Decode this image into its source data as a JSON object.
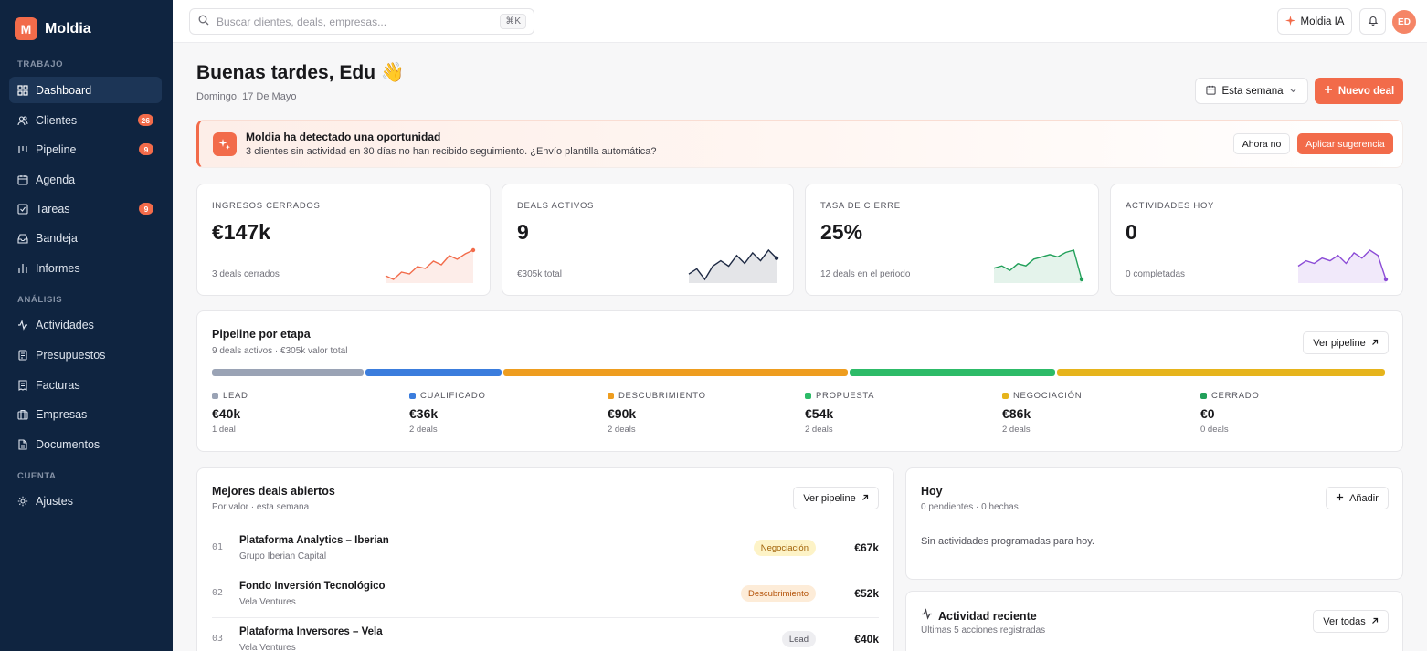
{
  "app": {
    "name": "Moldia",
    "logo_letter": "M"
  },
  "sidebar": {
    "sections": [
      {
        "label": "TRABAJO"
      },
      {
        "label": "ANÁLISIS"
      },
      {
        "label": "CUENTA"
      }
    ],
    "items": [
      {
        "label": "Dashboard",
        "icon": "grid-icon"
      },
      {
        "label": "Clientes",
        "icon": "users-icon",
        "badge": "26"
      },
      {
        "label": "Pipeline",
        "icon": "pipeline-icon",
        "badge": "9"
      },
      {
        "label": "Agenda",
        "icon": "calendar-icon"
      },
      {
        "label": "Tareas",
        "icon": "checkbox-icon",
        "badge": "9"
      },
      {
        "label": "Bandeja",
        "icon": "inbox-icon"
      },
      {
        "label": "Informes",
        "icon": "bar-chart-icon"
      },
      {
        "label": "Actividades",
        "icon": "activity-icon"
      },
      {
        "label": "Presupuestos",
        "icon": "document-icon"
      },
      {
        "label": "Facturas",
        "icon": "invoice-icon"
      },
      {
        "label": "Empresas",
        "icon": "briefcase-icon"
      },
      {
        "label": "Documentos",
        "icon": "file-icon"
      },
      {
        "label": "Ajustes",
        "icon": "gear-icon"
      }
    ]
  },
  "topbar": {
    "search_placeholder": "Buscar clientes, deals, empresas...",
    "shortcut": "⌘K",
    "ai_label": "Moldia IA",
    "avatar_initials": "ED"
  },
  "header": {
    "greeting": "Buenas tardes, Edu 👋",
    "date": "Domingo, 17 De Mayo",
    "period_label": "Esta semana",
    "new_deal_label": "Nuevo deal"
  },
  "banner": {
    "title": "Moldia ha detectado una oportunidad",
    "text": "3 clientes sin actividad en 30 días no han recibido seguimiento. ¿Envío plantilla automática?",
    "dismiss_label": "Ahora no",
    "apply_label": "Aplicar sugerencia"
  },
  "kpis": [
    {
      "label": "INGRESOS CERRADOS",
      "value": "€147k",
      "sub": "3 deals cerrados",
      "color": "#f26b4a",
      "trend": [
        3,
        1,
        5,
        4,
        8,
        7,
        11,
        9,
        14,
        12,
        15,
        17
      ]
    },
    {
      "label": "DEALS ACTIVOS",
      "value": "9",
      "sub": "€305k total",
      "color": "#1e2a44",
      "trend": [
        5,
        7,
        3,
        8,
        10,
        8,
        12,
        9,
        13,
        10,
        14,
        11
      ]
    },
    {
      "label": "TASA DE CIERRE",
      "value": "25%",
      "sub": "12 deals en el periodo",
      "color": "#22a05a",
      "trend": [
        6,
        7,
        5,
        8,
        7,
        10,
        11,
        12,
        11,
        13,
        14,
        1
      ]
    },
    {
      "label": "ACTIVIDADES HOY",
      "value": "0",
      "sub": "0 completadas",
      "color": "#8b4bd6",
      "trend": [
        7,
        9,
        8,
        10,
        9,
        11,
        8,
        12,
        10,
        13,
        11,
        2
      ]
    }
  ],
  "pipeline": {
    "title": "Pipeline por etapa",
    "subtitle": "9 deals activos · €305k valor total",
    "button_label": "Ver pipeline",
    "stages": [
      {
        "label": "LEAD",
        "value": "€40k",
        "count": "1 deal",
        "color": "#9aa3b5",
        "share": 40
      },
      {
        "label": "CUALIFICADO",
        "value": "€36k",
        "count": "2 deals",
        "color": "#3b7ddd",
        "share": 36
      },
      {
        "label": "DESCUBRIMIENTO",
        "value": "€90k",
        "count": "2 deals",
        "color": "#ee9d1f",
        "share": 90
      },
      {
        "label": "PROPUESTA",
        "value": "€54k",
        "count": "2 deals",
        "color": "#2dbb68",
        "share": 54
      },
      {
        "label": "NEGOCIACIÓN",
        "value": "€86k",
        "count": "2 deals",
        "color": "#e6b41c",
        "share": 86
      },
      {
        "label": "CERRADO",
        "value": "€0",
        "count": "0 deals",
        "color": "#22a05a",
        "share": 0
      }
    ]
  },
  "best_deals": {
    "title": "Mejores deals abiertos",
    "subtitle": "Por valor · esta semana",
    "button_label": "Ver pipeline",
    "rows": [
      {
        "num": "01",
        "name": "Plataforma Analytics – Iberian",
        "company": "Grupo Iberian Capital",
        "stage": "Negociación",
        "amount": "€67k"
      },
      {
        "num": "02",
        "name": "Fondo Inversión Tecnológico",
        "company": "Vela Ventures",
        "stage": "Descubrimiento",
        "amount": "€52k"
      },
      {
        "num": "03",
        "name": "Plataforma Inversores – Vela",
        "company": "Vela Ventures",
        "stage": "Lead",
        "amount": "€40k"
      }
    ]
  },
  "today": {
    "title": "Hoy",
    "subtitle": "0 pendientes · 0 hechas",
    "button_label": "Añadir",
    "empty": "Sin actividades programadas para hoy."
  },
  "recent": {
    "title": "Actividad reciente",
    "subtitle": "Últimas 5 acciones registradas",
    "button_label": "Ver todas"
  }
}
